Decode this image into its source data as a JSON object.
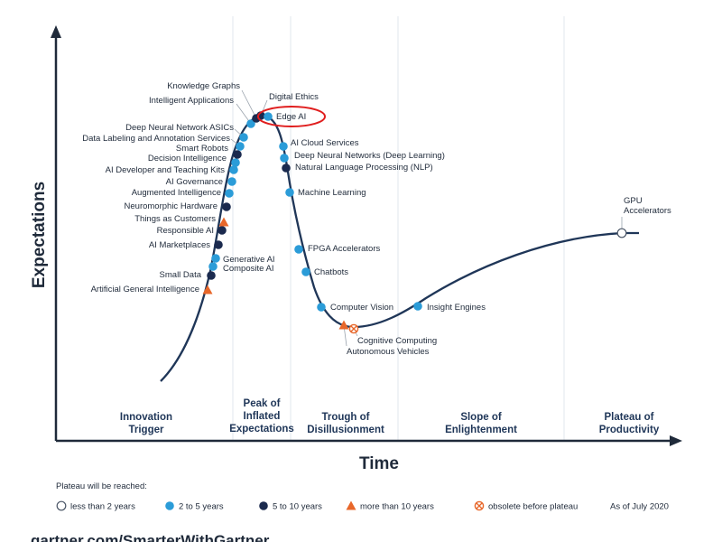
{
  "axes": {
    "y_title": "Expectations",
    "x_title": "Time"
  },
  "phases": [
    {
      "lines": [
        "Innovation",
        "Trigger"
      ]
    },
    {
      "lines": [
        "Peak of",
        "Inflated",
        "Expectations"
      ]
    },
    {
      "lines": [
        "Trough of",
        "Disillusionment"
      ]
    },
    {
      "lines": [
        "Slope of",
        "Enlightenment"
      ]
    },
    {
      "lines": [
        "Plateau of",
        "Productivity"
      ]
    }
  ],
  "technologies": [
    {
      "label": "Artificial General Intelligence",
      "category": "more than 10 years"
    },
    {
      "label": "Small Data",
      "category": "5 to 10 years"
    },
    {
      "label": "Composite AI",
      "category": "2 to 5 years"
    },
    {
      "label": "Generative AI",
      "category": "2 to 5 years"
    },
    {
      "label": "AI Marketplaces",
      "category": "5 to 10 years"
    },
    {
      "label": "Responsible AI",
      "category": "5 to 10 years"
    },
    {
      "label": "Things as Customers",
      "category": "more than 10 years"
    },
    {
      "label": "Neuromorphic Hardware",
      "category": "5 to 10 years"
    },
    {
      "label": "Augmented Intelligence",
      "category": "2 to 5 years"
    },
    {
      "label": "AI Governance",
      "category": "2 to 5 years"
    },
    {
      "label": "AI Developer and Teaching Kits",
      "category": "2 to 5 years"
    },
    {
      "label": "Decision Intelligence",
      "category": "2 to 5 years"
    },
    {
      "label": "Smart Robots",
      "category": "5 to 10 years"
    },
    {
      "label": "Data Labeling and Annotation Services",
      "category": "2 to 5 years"
    },
    {
      "label": "Deep Neural Network ASICs",
      "category": "2 to 5 years"
    },
    {
      "label": "Intelligent Applications",
      "category": "2 to 5 years"
    },
    {
      "label": "Knowledge Graphs",
      "category": "5 to 10 years"
    },
    {
      "label": "Digital Ethics",
      "category": "5 to 10 years"
    },
    {
      "label": "Edge AI",
      "category": "2 to 5 years",
      "highlighted": true
    },
    {
      "label": "AI Cloud Services",
      "category": "2 to 5 years"
    },
    {
      "label": "Deep Neural Networks (Deep Learning)",
      "category": "2 to 5 years"
    },
    {
      "label": "Natural Language Processing (NLP)",
      "category": "5 to 10 years"
    },
    {
      "label": "Machine Learning",
      "category": "2 to 5 years"
    },
    {
      "label": "FPGA Accelerators",
      "category": "2 to 5 years"
    },
    {
      "label": "Chatbots",
      "category": "2 to 5 years"
    },
    {
      "label": "Computer Vision",
      "category": "2 to 5 years"
    },
    {
      "label": "Autonomous Vehicles",
      "category": "more than 10 years"
    },
    {
      "label": "Cognitive Computing",
      "category": "obsolete before plateau"
    },
    {
      "label": "Insight Engines",
      "category": "2 to 5 years"
    },
    {
      "label": "GPU Accelerators",
      "category": "less than 2 years"
    }
  ],
  "legend": {
    "title": "Plateau will be reached:",
    "items": [
      {
        "label": "less than 2 years",
        "marker": "hollow-circle"
      },
      {
        "label": "2 to 5 years",
        "marker": "blue-circle",
        "color": "#2b9cd8"
      },
      {
        "label": "5 to 10 years",
        "marker": "navy-circle",
        "color": "#1b2a4e"
      },
      {
        "label": "more than 10 years",
        "marker": "orange-triangle",
        "color": "#e8672a"
      },
      {
        "label": "obsolete before plateau",
        "marker": "crossed-circle",
        "color": "#e8672a"
      }
    ],
    "as_of": "As of July 2020"
  },
  "footer": "gartner.com/SmarterWithGartner",
  "colors": {
    "blue": "#2b9cd8",
    "navy": "#1b2a4e",
    "orange": "#e8672a",
    "highlight": "#e01e1e",
    "axis": "#1f2a3a"
  }
}
